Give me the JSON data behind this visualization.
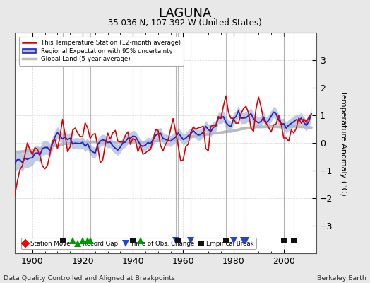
{
  "title": "LAGUNA",
  "subtitle": "35.036 N, 107.392 W (United States)",
  "ylabel": "Temperature Anomaly (°C)",
  "footer_left": "Data Quality Controlled and Aligned at Breakpoints",
  "footer_right": "Berkeley Earth",
  "xlim": [
    1893,
    2013
  ],
  "ylim": [
    -4,
    4
  ],
  "yticks": [
    -3,
    -2,
    -1,
    0,
    1,
    2,
    3
  ],
  "xticks": [
    1900,
    1920,
    1940,
    1960,
    1980,
    2000
  ],
  "background_color": "#e8e8e8",
  "plot_bg_color": "#ffffff",
  "station_color": "#dd0000",
  "regional_color": "#2222bb",
  "regional_fill_color": "#aabbdd",
  "global_color": "#bbbbbb",
  "seed": 123,
  "start_year": 1893,
  "end_year": 2011,
  "station_move": [],
  "record_gap": [
    1916,
    1920,
    1922,
    1923,
    1943
  ],
  "time_obs_change": [
    1957,
    1963,
    1980,
    1984,
    1985
  ],
  "empirical_break": [
    1912,
    1940,
    1958,
    1977,
    2000,
    2004
  ],
  "vline_color": "#888888",
  "vline_alpha": 0.6,
  "vline_lw": 0.8
}
